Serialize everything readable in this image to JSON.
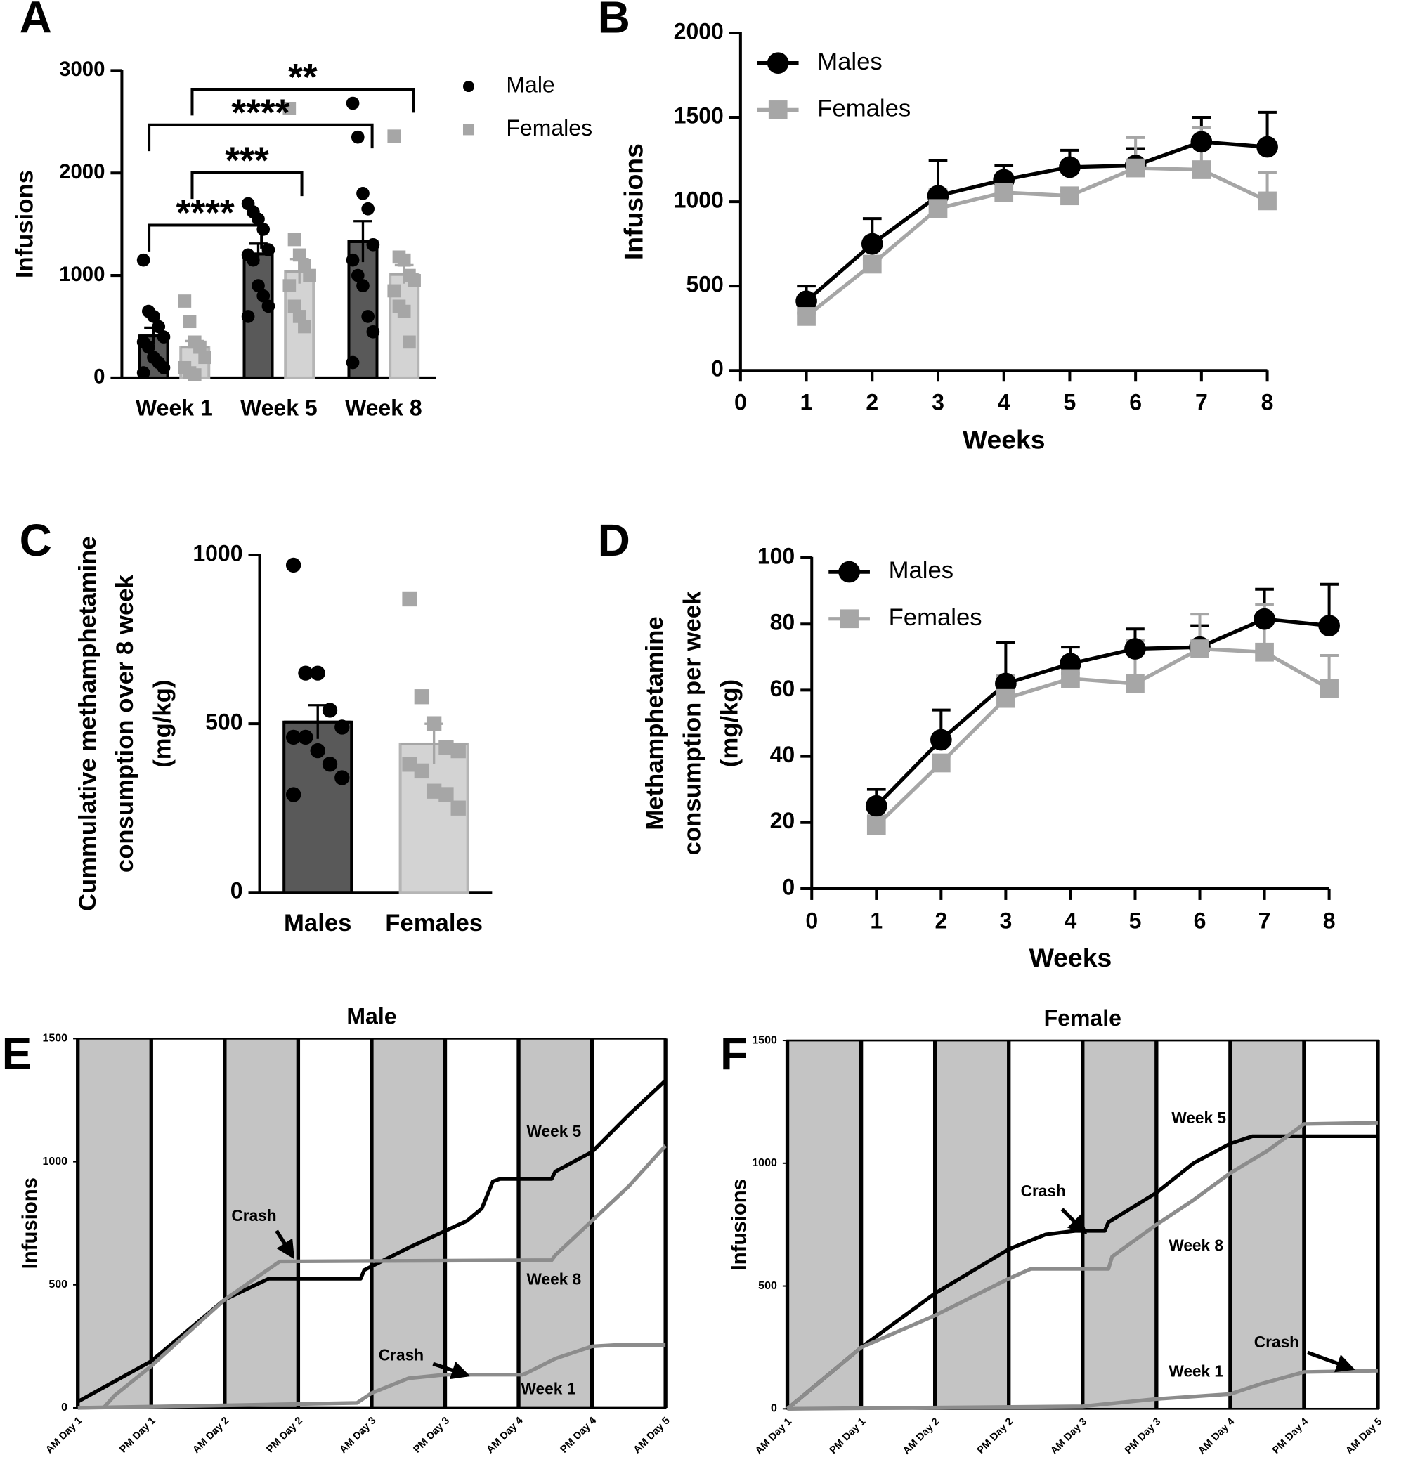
{
  "chart_data": [
    {
      "panel": "A",
      "type": "bar",
      "categories": [
        "Week 1",
        "Week 5",
        "Week 8"
      ],
      "ylabel": "Infusions",
      "ylim": [
        0,
        3000
      ],
      "yticks": [
        0,
        1000,
        2000,
        3000
      ],
      "legend": "outside right",
      "annotations": [
        "****",
        "***",
        "****",
        "**"
      ],
      "series": [
        {
          "name": "Male",
          "marker": "circle",
          "color": "#000000",
          "bar_color": "#595959",
          "values": [
            410,
            1210,
            1330
          ],
          "errors": [
            80,
            100,
            200
          ],
          "points": [
            [
              1150,
              650,
              600,
              500,
              400,
              350,
              300,
              200,
              150,
              100,
              50
            ],
            [
              1700,
              1620,
              1550,
              1450,
              1250,
              1200,
              1150,
              900,
              800,
              700,
              600
            ],
            [
              2680,
              2350,
              1800,
              1650,
              1300,
              1150,
              1000,
              900,
              600,
              450,
              150
            ]
          ]
        },
        {
          "name": "Females",
          "marker": "square",
          "color": "#a6a6a6",
          "bar_color": "#d3d3d3",
          "values": [
            300,
            1040,
            1010
          ],
          "errors": [
            60,
            120,
            90
          ],
          "points": [
            [
              750,
              550,
              350,
              300,
              200,
              100,
              50,
              30
            ],
            [
              2630,
              1350,
              1200,
              1100,
              1000,
              900,
              700,
              600,
              500
            ],
            [
              2360,
              1180,
              1150,
              1000,
              950,
              850,
              700,
              650,
              350
            ]
          ]
        }
      ]
    },
    {
      "panel": "B",
      "type": "line",
      "x": [
        1,
        2,
        3,
        4,
        5,
        6,
        7,
        8
      ],
      "xlabel": "Weeks",
      "ylabel": "Infusions",
      "xlim": [
        0,
        8
      ],
      "xticks": [
        0,
        1,
        2,
        3,
        4,
        5,
        6,
        7,
        8
      ],
      "ylim": [
        0,
        2000
      ],
      "yticks": [
        0,
        500,
        1000,
        1500,
        2000
      ],
      "legend": "upper left",
      "series": [
        {
          "name": "Males",
          "marker": "circle",
          "color": "#000000",
          "values": [
            410,
            750,
            1035,
            1130,
            1205,
            1215,
            1355,
            1325
          ],
          "errors": [
            90,
            150,
            210,
            85,
            100,
            100,
            145,
            205
          ]
        },
        {
          "name": "Females",
          "marker": "square",
          "color": "#a6a6a6",
          "values": [
            320,
            630,
            960,
            1055,
            1035,
            1200,
            1190,
            1005
          ],
          "errors": [
            20,
            30,
            110,
            70,
            30,
            180,
            250,
            170
          ]
        }
      ]
    },
    {
      "panel": "C",
      "type": "bar",
      "categories": [
        "Males",
        "Females"
      ],
      "ylabel": [
        "Cummulative methamphetamine",
        "consumption over 8 week",
        "(mg/kg)"
      ],
      "ylim": [
        0,
        1000
      ],
      "yticks": [
        0,
        500,
        1000
      ],
      "values": [
        505,
        440
      ],
      "errors": [
        50,
        60
      ],
      "colors": [
        "#000000",
        "#a6a6a6"
      ],
      "bar_colors": [
        "#595959",
        "#d3d3d3"
      ],
      "points": [
        [
          970,
          650,
          650,
          540,
          490,
          460,
          460,
          420,
          380,
          340,
          290
        ],
        [
          870,
          580,
          500,
          430,
          420,
          380,
          360,
          300,
          290,
          250
        ]
      ]
    },
    {
      "panel": "D",
      "type": "line",
      "x": [
        1,
        2,
        3,
        4,
        5,
        6,
        7,
        8
      ],
      "xlabel": "Weeks",
      "ylabel": [
        "Methamphetamine",
        "consumption per week",
        "(mg/kg)"
      ],
      "xlim": [
        0,
        8
      ],
      "xticks": [
        0,
        1,
        2,
        3,
        4,
        5,
        6,
        7,
        8
      ],
      "ylim": [
        0,
        100
      ],
      "yticks": [
        0,
        20,
        40,
        60,
        80,
        100
      ],
      "legend": "upper left",
      "series": [
        {
          "name": "Males",
          "marker": "circle",
          "color": "#000000",
          "values": [
            25,
            45,
            62,
            68,
            72.5,
            73,
            81.5,
            79.5
          ],
          "errors": [
            5,
            9,
            12.5,
            5,
            6,
            6.5,
            9,
            12.5
          ]
        },
        {
          "name": "Females",
          "marker": "square",
          "color": "#a6a6a6",
          "values": [
            19,
            38,
            57.5,
            63.5,
            62,
            72.5,
            71.5,
            60.5
          ],
          "errors": [
            3,
            2,
            7,
            1.5,
            13,
            10.5,
            14.5,
            10
          ]
        }
      ]
    },
    {
      "panel": "E",
      "type": "trace",
      "title": "Male",
      "ylabel": "Infusions",
      "shaded": true,
      "xlim": [
        0,
        8
      ],
      "xticks": [
        {
          "value": 0,
          "label": "AM Day 1"
        },
        {
          "value": 1,
          "label": "PM Day 1"
        },
        {
          "value": 2,
          "label": "AM Day 2"
        },
        {
          "value": 3,
          "label": "PM Day 2"
        },
        {
          "value": 4,
          "label": "AM Day 3"
        },
        {
          "value": 5,
          "label": "PM Day 3"
        },
        {
          "value": 6,
          "label": "AM Day 4"
        },
        {
          "value": 7,
          "label": "PM Day 4"
        },
        {
          "value": 8,
          "label": "AM Day 5"
        }
      ],
      "ylim": [
        0,
        1500
      ],
      "yticks": [
        0,
        500,
        1000,
        1500
      ],
      "annotations": [
        "Crash",
        "Crash"
      ],
      "series": [
        {
          "name": "Week 5",
          "color": "#000000",
          "x": [
            0,
            1,
            2,
            2.6,
            3.85,
            3.9,
            4.5,
            5.3,
            5.5,
            5.65,
            5.75,
            6.45,
            6.5,
            7,
            7.5,
            8
          ],
          "values": [
            25,
            190,
            440,
            525,
            525,
            560,
            650,
            760,
            810,
            920,
            930,
            930,
            960,
            1040,
            1190,
            1330
          ]
        },
        {
          "name": "Week 8",
          "color": "#8c8c8c",
          "x": [
            0.35,
            0.5,
            1,
            2,
            2.75,
            6.45,
            6.5,
            7,
            7.5,
            8
          ],
          "values": [
            0,
            50,
            170,
            440,
            595,
            600,
            620,
            760,
            900,
            1065
          ]
        },
        {
          "name": "Week 1",
          "color": "#8c8c8c",
          "x": [
            0,
            2,
            3.8,
            4,
            4.5,
            5,
            6.05,
            6.1,
            6.5,
            7,
            7.3,
            8
          ],
          "values": [
            0,
            10,
            20,
            60,
            120,
            135,
            135,
            140,
            200,
            250,
            255,
            255
          ]
        }
      ]
    },
    {
      "panel": "F",
      "type": "trace",
      "title": "Female",
      "ylabel": "Infusions",
      "shaded": true,
      "xlim": [
        0,
        8
      ],
      "xticks": [
        {
          "value": 0,
          "label": "AM Day 1"
        },
        {
          "value": 1,
          "label": "PM Day 1"
        },
        {
          "value": 2,
          "label": "AM Day 2"
        },
        {
          "value": 3,
          "label": "PM Day 2"
        },
        {
          "value": 4,
          "label": "AM Day 3"
        },
        {
          "value": 5,
          "label": "PM Day 3"
        },
        {
          "value": 6,
          "label": "AM Day 4"
        },
        {
          "value": 7,
          "label": "PM Day 4"
        },
        {
          "value": 8,
          "label": "AM Day 5"
        }
      ],
      "ylim": [
        0,
        1500
      ],
      "yticks": [
        0,
        500,
        1000,
        1500
      ],
      "annotations": [
        "Crash",
        "Crash"
      ],
      "series": [
        {
          "name": "Week 5",
          "color": "#000000",
          "x": [
            0,
            1,
            2,
            3,
            3.5,
            3.9,
            4.3,
            4.35,
            5,
            5.5,
            6,
            6.3,
            8
          ],
          "values": [
            0,
            250,
            470,
            650,
            710,
            725,
            725,
            760,
            880,
            1000,
            1080,
            1110,
            1110
          ]
        },
        {
          "name": "Week 8",
          "color": "#8c8c8c",
          "x": [
            0,
            1,
            2,
            3,
            3.3,
            4.35,
            4.4,
            5,
            5.5,
            6,
            6.5,
            7,
            8
          ],
          "values": [
            0,
            250,
            380,
            530,
            570,
            570,
            620,
            750,
            850,
            960,
            1050,
            1160,
            1165
          ]
        },
        {
          "name": "Week 1",
          "color": "#8c8c8c",
          "x": [
            0,
            4,
            5,
            6,
            6.4,
            7,
            8
          ],
          "values": [
            0,
            10,
            40,
            60,
            100,
            150,
            155
          ]
        }
      ]
    }
  ]
}
